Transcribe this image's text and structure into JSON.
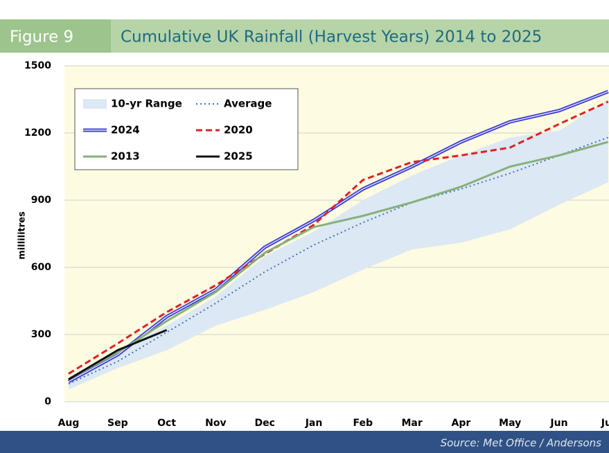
{
  "chart_data": {
    "type": "line",
    "figure_label": "Figure 9",
    "title": "Cumulative UK Rainfall (Harvest Years) 2014 to 2025",
    "y_label": "millilitres",
    "source": "Source: Met Office / Andersons",
    "categories": [
      "Aug",
      "Sep",
      "Oct",
      "Nov",
      "Dec",
      "Jan",
      "Feb",
      "Mar",
      "Apr",
      "May",
      "Jun",
      "Jul"
    ],
    "ylim": [
      0,
      1500
    ],
    "yticks": [
      0,
      300,
      600,
      900,
      1200,
      1500
    ],
    "grid": true,
    "range": {
      "name": "10-yr Range",
      "color": "#dce8f4",
      "low": [
        55,
        150,
        230,
        340,
        410,
        490,
        590,
        680,
        710,
        770,
        880,
        980
      ],
      "high": [
        110,
        230,
        340,
        470,
        650,
        760,
        900,
        1010,
        1100,
        1180,
        1210,
        1350
      ]
    },
    "series": [
      {
        "name": "Average",
        "color": "#3f6fb5",
        "dash": "dotted",
        "values": [
          80,
          180,
          310,
          440,
          580,
          700,
          800,
          890,
          950,
          1020,
          1100,
          1180
        ]
      },
      {
        "name": "2024",
        "color": "#3a3ad0",
        "dash": "double",
        "values": [
          90,
          210,
          380,
          500,
          690,
          810,
          950,
          1050,
          1160,
          1250,
          1300,
          1385
        ]
      },
      {
        "name": "2020",
        "color": "#e02020",
        "dash": "dashed",
        "values": [
          125,
          260,
          400,
          520,
          660,
          790,
          990,
          1070,
          1100,
          1135,
          1240,
          1340
        ]
      },
      {
        "name": "2013",
        "color": "#86b07a",
        "dash": "solid",
        "values": [
          100,
          220,
          360,
          490,
          665,
          780,
          830,
          890,
          960,
          1050,
          1100,
          1160
        ]
      },
      {
        "name": "2025",
        "color": "#111111",
        "dash": "solid",
        "values": [
          100,
          230,
          320,
          null,
          null,
          null,
          null,
          null,
          null,
          null,
          null,
          null
        ]
      }
    ]
  }
}
